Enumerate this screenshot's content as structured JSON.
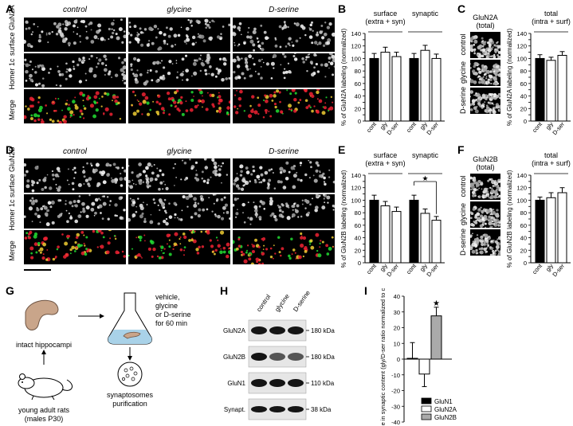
{
  "panels": {
    "A": "A",
    "B": "B",
    "C": "C",
    "D": "D",
    "E": "E",
    "F": "F",
    "G": "G",
    "H": "H",
    "I": "I"
  },
  "conditions": [
    "control",
    "glycine",
    "D-serine"
  ],
  "panel_A": {
    "rows": [
      "surface GluN2A",
      "Homer 1c",
      "Merge"
    ]
  },
  "panel_D": {
    "rows": [
      "surface GluN2B",
      "Homer 1c",
      "Merge"
    ]
  },
  "panel_C": {
    "title": "GluN2A (total)",
    "rows": [
      "control",
      "glycine",
      "D-serine"
    ]
  },
  "panel_F": {
    "title": "GluN2B (total)",
    "rows": [
      "control",
      "glycine",
      "D-serine"
    ]
  },
  "chart_data": [
    {
      "id": "B",
      "type": "bar",
      "groups": [
        {
          "label": "surface",
          "sublabel": "(extra + syn)"
        },
        {
          "label": "synaptic",
          "sublabel": ""
        }
      ],
      "categories": [
        "cont",
        "gly",
        "D-ser"
      ],
      "values": [
        [
          100,
          110,
          103
        ],
        [
          100,
          113,
          100
        ]
      ],
      "errors": [
        [
          8,
          8,
          7
        ],
        [
          8,
          8,
          7
        ]
      ],
      "ylabel": "% of GluN2A labeling (normalized)",
      "ylim": [
        0,
        140
      ],
      "yticks": [
        0,
        10,
        20,
        30,
        40,
        50,
        60,
        70,
        80,
        90,
        100,
        110,
        120,
        130,
        140
      ]
    },
    {
      "id": "C",
      "type": "bar",
      "groups": [
        {
          "label": "total",
          "sublabel": "(intra + surf)"
        }
      ],
      "categories": [
        "cont",
        "gly",
        "D-ser"
      ],
      "values": [
        [
          100,
          97,
          105
        ]
      ],
      "errors": [
        [
          6,
          5,
          6
        ]
      ],
      "ylabel": "% of GluN2A labeling (normalized)",
      "ylim": [
        0,
        140
      ],
      "yticks": [
        0,
        10,
        20,
        30,
        40,
        50,
        60,
        70,
        80,
        90,
        100,
        110,
        120,
        130,
        140
      ]
    },
    {
      "id": "E",
      "type": "bar",
      "groups": [
        {
          "label": "surface",
          "sublabel": "(extra + syn)"
        },
        {
          "label": "synaptic",
          "sublabel": ""
        }
      ],
      "categories": [
        "cont",
        "gly",
        "D-ser"
      ],
      "values": [
        [
          100,
          91,
          82
        ],
        [
          100,
          79,
          68
        ]
      ],
      "errors": [
        [
          8,
          7,
          7
        ],
        [
          8,
          7,
          6
        ]
      ],
      "ylabel": "% of GluN2B labeling (normalized)",
      "ylim": [
        0,
        140
      ],
      "yticks": [
        0,
        10,
        20,
        30,
        40,
        50,
        60,
        70,
        80,
        90,
        100,
        110,
        120,
        130,
        140
      ],
      "annotation": "★"
    },
    {
      "id": "F",
      "type": "bar",
      "groups": [
        {
          "label": "total",
          "sublabel": "(intra + surf)"
        }
      ],
      "categories": [
        "cont",
        "gly",
        "D-ser"
      ],
      "values": [
        [
          100,
          104,
          112
        ]
      ],
      "errors": [
        [
          5,
          8,
          8
        ]
      ],
      "ylabel": "% of GluN2B labeling (normalized)",
      "ylim": [
        0,
        140
      ],
      "yticks": [
        0,
        10,
        20,
        30,
        40,
        50,
        60,
        70,
        80,
        90,
        100,
        110,
        120,
        130,
        140
      ]
    },
    {
      "id": "I",
      "type": "bar",
      "categories": [
        "GluN1",
        "GluN2A",
        "GluN2B"
      ],
      "values": [
        0.5,
        -9.5,
        27.5
      ],
      "errors": [
        10,
        8,
        5.5
      ],
      "colors": [
        "#000000",
        "#ffffff",
        "#aaaaaa"
      ],
      "ylabel": "%change in synaptic content (gly/D-ser ratio normalized to control)",
      "ylim": [
        -40,
        40
      ],
      "yticks": [
        -40,
        -30,
        -20,
        -10,
        0,
        10,
        20,
        30,
        40
      ],
      "annotation": "★"
    }
  ],
  "panel_G": {
    "hippocampi": "intact hippocampi",
    "rats_line1": "young adult rats",
    "rats_line2": "(males P30)",
    "treat_line1": "vehicle,",
    "treat_line2": "glycine",
    "treat_line3": "or D-serine",
    "treat_line4": "for 60 min",
    "syn_line1": "synaptosomes",
    "syn_line2": "purification"
  },
  "panel_H": {
    "lanes": [
      "control",
      "glycine",
      "D-serine"
    ],
    "rows": [
      {
        "name": "GluN2A",
        "kda": "180 kDa"
      },
      {
        "name": "GluN2B",
        "kda": "180 kDa"
      },
      {
        "name": "GluN1",
        "kda": "110 kDa"
      },
      {
        "name": "Synapt.",
        "kda": "38 kDa"
      }
    ]
  }
}
